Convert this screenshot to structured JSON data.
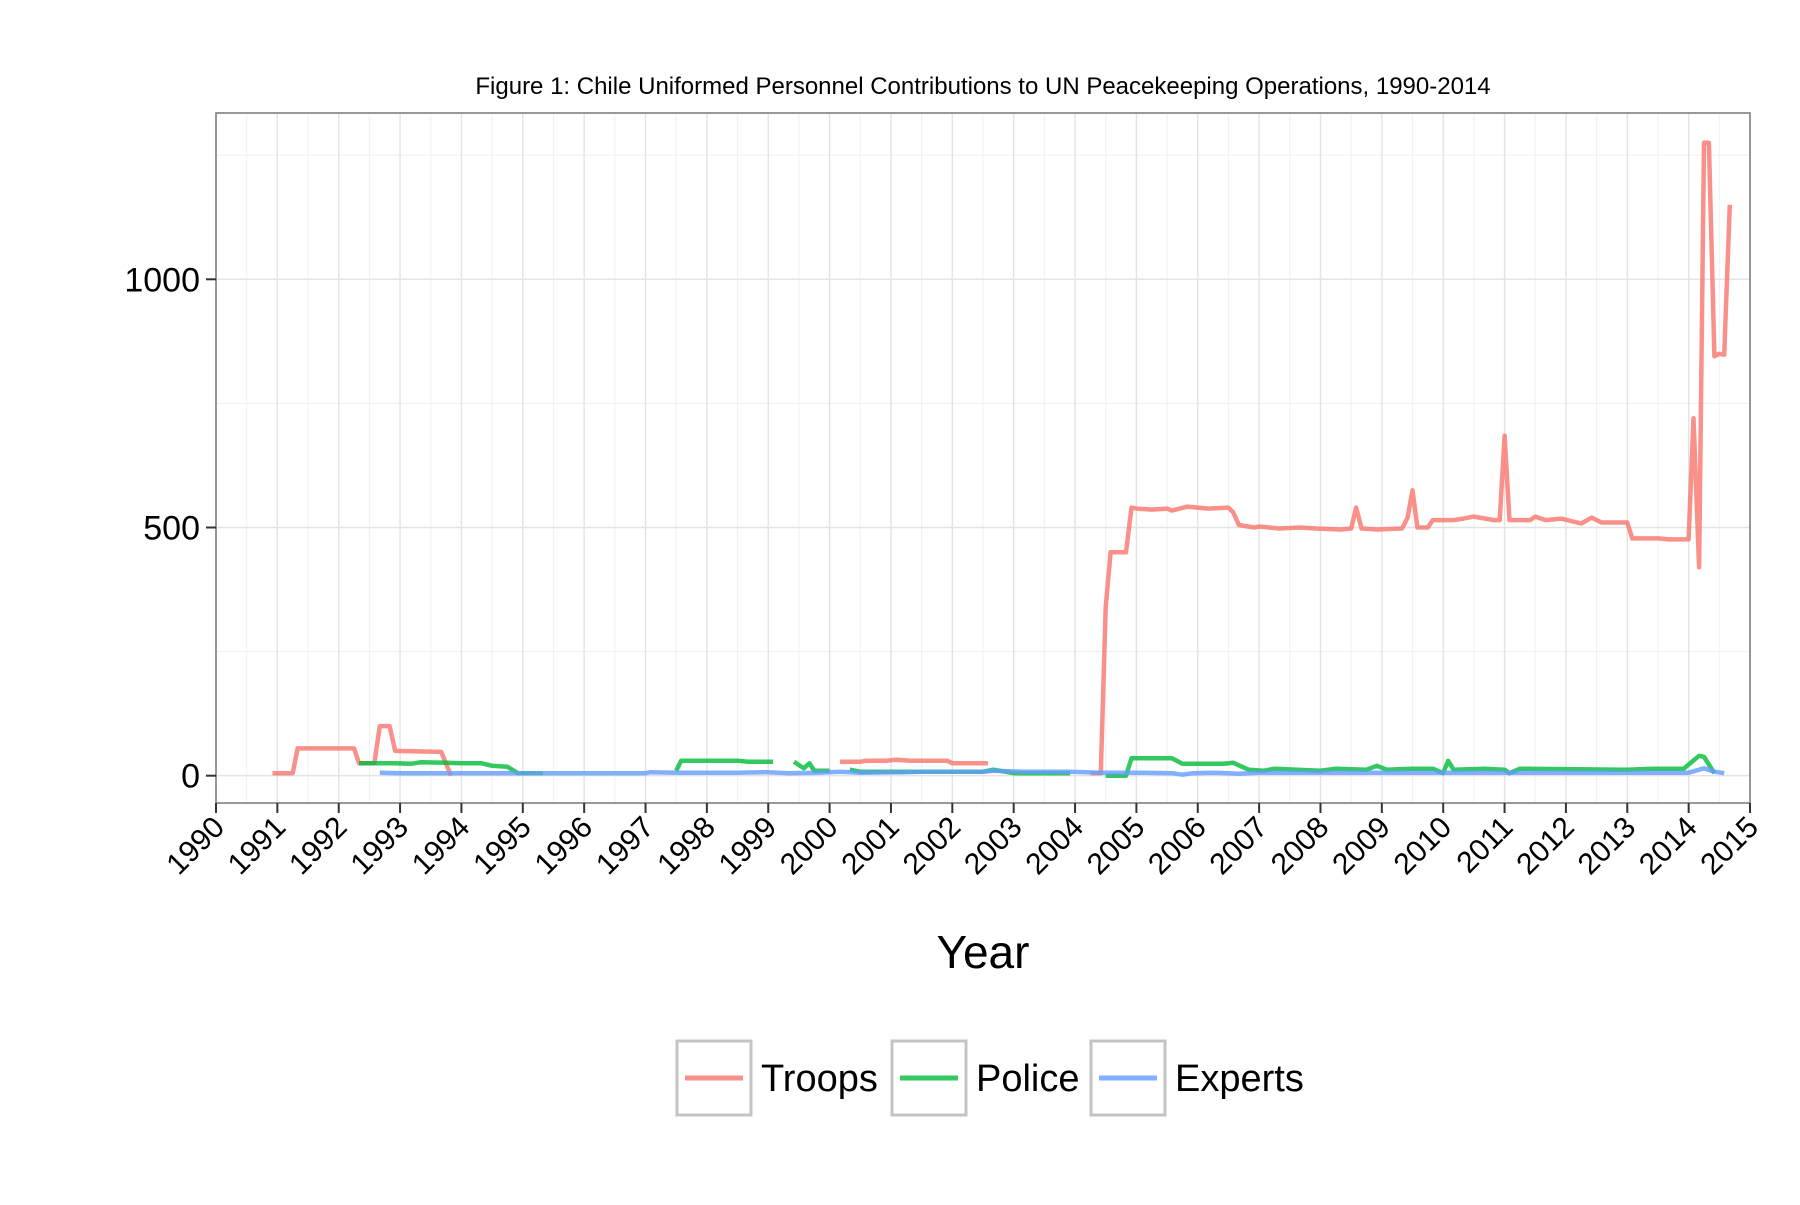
{
  "chart_data": {
    "type": "line",
    "title": "Figure 1: Chile Uniformed Personnel Contributions to UN Peacekeeping Operations, 1990-2014",
    "xlabel": "Year",
    "ylabel": "",
    "xlim": [
      1990,
      2015
    ],
    "ylim": [
      -55,
      1335
    ],
    "x_ticks": [
      1990,
      1991,
      1992,
      1993,
      1994,
      1995,
      1996,
      1997,
      1998,
      1999,
      2000,
      2001,
      2002,
      2003,
      2004,
      2005,
      2006,
      2007,
      2008,
      2009,
      2010,
      2011,
      2012,
      2013,
      2014,
      2015
    ],
    "x_tick_labels": [
      "1990",
      "1991",
      "1992",
      "1993",
      "1994",
      "1995",
      "1996",
      "1997",
      "1998",
      "1999",
      "2000",
      "2001",
      "2002",
      "2003",
      "2004",
      "2005",
      "2006",
      "2007",
      "2008",
      "2009",
      "2010",
      "2011",
      "2012",
      "2013",
      "2014",
      "2015"
    ],
    "y_ticks": [
      0,
      500,
      1000
    ],
    "y_tick_labels": [
      "0",
      "500",
      "1000"
    ],
    "grid": true,
    "legend_position": "bottom",
    "colors": {
      "Troops": "#f8766d",
      "Police": "#00ba38",
      "Experts": "#619cff"
    },
    "series": [
      {
        "name": "Troops",
        "segments": [
          [
            [
              1990.92,
              5
            ],
            [
              1991.25,
              5
            ],
            [
              1991.33,
              55
            ],
            [
              1992.25,
              55
            ],
            [
              1992.33,
              25
            ],
            [
              1992.58,
              25
            ],
            [
              1992.67,
              100
            ],
            [
              1992.83,
              100
            ],
            [
              1992.92,
              50
            ],
            [
              1993.67,
              48
            ],
            [
              1993.83,
              0
            ]
          ],
          [
            [
              2000.17,
              28
            ],
            [
              2000.5,
              28
            ],
            [
              2000.58,
              30
            ],
            [
              2000.92,
              30
            ],
            [
              2001.08,
              32
            ],
            [
              2001.33,
              30
            ],
            [
              2001.58,
              30
            ],
            [
              2001.92,
              30
            ],
            [
              2002.0,
              25
            ],
            [
              2002.58,
              25
            ]
          ],
          [
            [
              2004.25,
              5
            ],
            [
              2004.42,
              5
            ],
            [
              2004.5,
              340
            ],
            [
              2004.58,
              450
            ],
            [
              2004.83,
              450
            ],
            [
              2004.92,
              540
            ],
            [
              2005.0,
              538
            ],
            [
              2005.25,
              536
            ],
            [
              2005.5,
              538
            ],
            [
              2005.58,
              534
            ],
            [
              2005.83,
              542
            ],
            [
              2006.17,
              538
            ],
            [
              2006.5,
              540
            ],
            [
              2006.58,
              530
            ],
            [
              2006.67,
              505
            ],
            [
              2006.92,
              500
            ],
            [
              2007.0,
              502
            ],
            [
              2007.33,
              498
            ],
            [
              2007.67,
              500
            ],
            [
              2007.92,
              498
            ],
            [
              2008.33,
              496
            ],
            [
              2008.5,
              498
            ],
            [
              2008.58,
              540
            ],
            [
              2008.67,
              498
            ],
            [
              2008.92,
              496
            ],
            [
              2009.33,
              498
            ],
            [
              2009.42,
              520
            ],
            [
              2009.5,
              575
            ],
            [
              2009.58,
              500
            ],
            [
              2009.75,
              500
            ],
            [
              2009.83,
              515
            ],
            [
              2010.17,
              515
            ],
            [
              2010.33,
              518
            ],
            [
              2010.5,
              522
            ],
            [
              2010.83,
              515
            ],
            [
              2010.92,
              515
            ],
            [
              2011.0,
              685
            ],
            [
              2011.08,
              515
            ],
            [
              2011.42,
              515
            ],
            [
              2011.5,
              522
            ],
            [
              2011.67,
              515
            ],
            [
              2011.92,
              518
            ],
            [
              2012.25,
              508
            ],
            [
              2012.42,
              520
            ],
            [
              2012.58,
              510
            ],
            [
              2013.0,
              510
            ],
            [
              2013.08,
              478
            ],
            [
              2013.5,
              478
            ],
            [
              2013.67,
              476
            ],
            [
              2014.0,
              476
            ],
            [
              2014.08,
              720
            ],
            [
              2014.17,
              420
            ],
            [
              2014.25,
              1275
            ],
            [
              2014.33,
              1275
            ],
            [
              2014.42,
              845
            ],
            [
              2014.5,
              850
            ],
            [
              2014.58,
              848
            ],
            [
              2014.67,
              1150
            ]
          ]
        ]
      },
      {
        "name": "Police",
        "segments": [
          [
            [
              1992.33,
              25
            ],
            [
              1992.92,
              25
            ],
            [
              1993.17,
              24
            ],
            [
              1993.33,
              27
            ],
            [
              1993.75,
              26
            ],
            [
              1994.0,
              25
            ],
            [
              1994.33,
              25
            ],
            [
              1994.5,
              20
            ],
            [
              1994.75,
              18
            ],
            [
              1994.92,
              5
            ],
            [
              1995.33,
              5
            ]
          ],
          [
            [
              1997.5,
              10
            ],
            [
              1997.58,
              30
            ],
            [
              1998.5,
              30
            ],
            [
              1998.67,
              28
            ],
            [
              1999.08,
              28
            ]
          ],
          [
            [
              1999.42,
              28
            ],
            [
              1999.58,
              15
            ],
            [
              1999.67,
              25
            ],
            [
              1999.75,
              10
            ],
            [
              2000.0,
              10
            ]
          ],
          [
            [
              2000.33,
              12
            ],
            [
              2000.5,
              8
            ],
            [
              2002.5,
              8
            ],
            [
              2002.67,
              12
            ],
            [
              2003.0,
              5
            ],
            [
              2003.92,
              5
            ]
          ],
          [
            [
              2004.5,
              0
            ],
            [
              2004.83,
              0
            ],
            [
              2004.92,
              35
            ],
            [
              2005.58,
              35
            ],
            [
              2005.75,
              24
            ],
            [
              2006.42,
              24
            ],
            [
              2006.58,
              26
            ],
            [
              2006.83,
              12
            ],
            [
              2007.08,
              10
            ],
            [
              2007.25,
              14
            ],
            [
              2008.0,
              10
            ],
            [
              2008.25,
              14
            ],
            [
              2008.75,
              12
            ],
            [
              2008.92,
              20
            ],
            [
              2009.08,
              12
            ],
            [
              2009.5,
              14
            ],
            [
              2009.83,
              14
            ],
            [
              2010.0,
              5
            ],
            [
              2010.08,
              30
            ],
            [
              2010.17,
              12
            ],
            [
              2010.67,
              14
            ],
            [
              2011.0,
              12
            ],
            [
              2011.08,
              5
            ],
            [
              2011.25,
              14
            ],
            [
              2013.0,
              12
            ],
            [
              2013.42,
              14
            ],
            [
              2013.92,
              14
            ],
            [
              2014.17,
              40
            ],
            [
              2014.25,
              38
            ],
            [
              2014.42,
              5
            ]
          ]
        ]
      },
      {
        "name": "Experts",
        "segments": [
          [
            [
              1992.67,
              6
            ],
            [
              1993.0,
              5
            ],
            [
              1995.5,
              5
            ]
          ],
          [
            [
              1995.5,
              5
            ],
            [
              1997.0,
              5
            ],
            [
              1997.08,
              7
            ],
            [
              1997.5,
              6
            ],
            [
              1998.0,
              6
            ],
            [
              1998.5,
              6
            ],
            [
              1999.0,
              7
            ],
            [
              1999.33,
              5
            ],
            [
              1999.83,
              6
            ],
            [
              2000.17,
              8
            ],
            [
              2000.5,
              6
            ],
            [
              2001.17,
              7
            ],
            [
              2001.5,
              8
            ],
            [
              2002.5,
              8
            ],
            [
              2002.67,
              10
            ],
            [
              2003.17,
              8
            ],
            [
              2003.92,
              8
            ],
            [
              2004.42,
              6
            ],
            [
              2005.0,
              6
            ],
            [
              2005.58,
              5
            ],
            [
              2005.75,
              2
            ],
            [
              2005.92,
              5
            ],
            [
              2006.25,
              6
            ],
            [
              2006.5,
              5
            ],
            [
              2006.67,
              4
            ],
            [
              2007.0,
              6
            ],
            [
              2007.5,
              6
            ],
            [
              2008.5,
              6
            ],
            [
              2009.0,
              6
            ],
            [
              2010.0,
              6
            ],
            [
              2011.0,
              6
            ],
            [
              2012.0,
              6
            ],
            [
              2013.0,
              6
            ],
            [
              2014.0,
              6
            ],
            [
              2014.25,
              15
            ],
            [
              2014.42,
              8
            ],
            [
              2014.58,
              5
            ]
          ]
        ]
      }
    ]
  }
}
